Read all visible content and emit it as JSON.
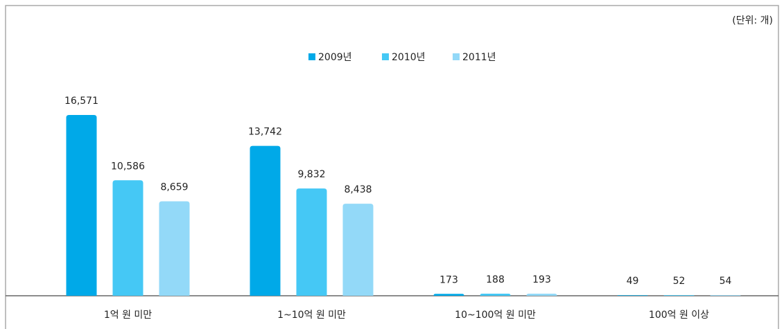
{
  "chart_data": {
    "type": "bar",
    "subtitle": "(단위: 개)",
    "categories": [
      "1억 원 미만",
      "1~10억 원 미만",
      "10~100억 원 미만",
      "100억 원 이상"
    ],
    "series": [
      {
        "name": "2009년",
        "color": "#00a9e8",
        "values": [
          16571,
          13742,
          173,
          49
        ],
        "value_labels": [
          "16,571",
          "13,742",
          "173",
          "49"
        ]
      },
      {
        "name": "2010년",
        "color": "#45c8f5",
        "values": [
          10586,
          9832,
          188,
          52
        ],
        "value_labels": [
          "10,586",
          "9,832",
          "188",
          "52"
        ]
      },
      {
        "name": "2011년",
        "color": "#93d9f8",
        "values": [
          8659,
          8438,
          193,
          54
        ],
        "value_labels": [
          "8,659",
          "8,438",
          "193",
          "54"
        ]
      }
    ],
    "ylim": [
      0,
      20000
    ],
    "legend": "top"
  }
}
